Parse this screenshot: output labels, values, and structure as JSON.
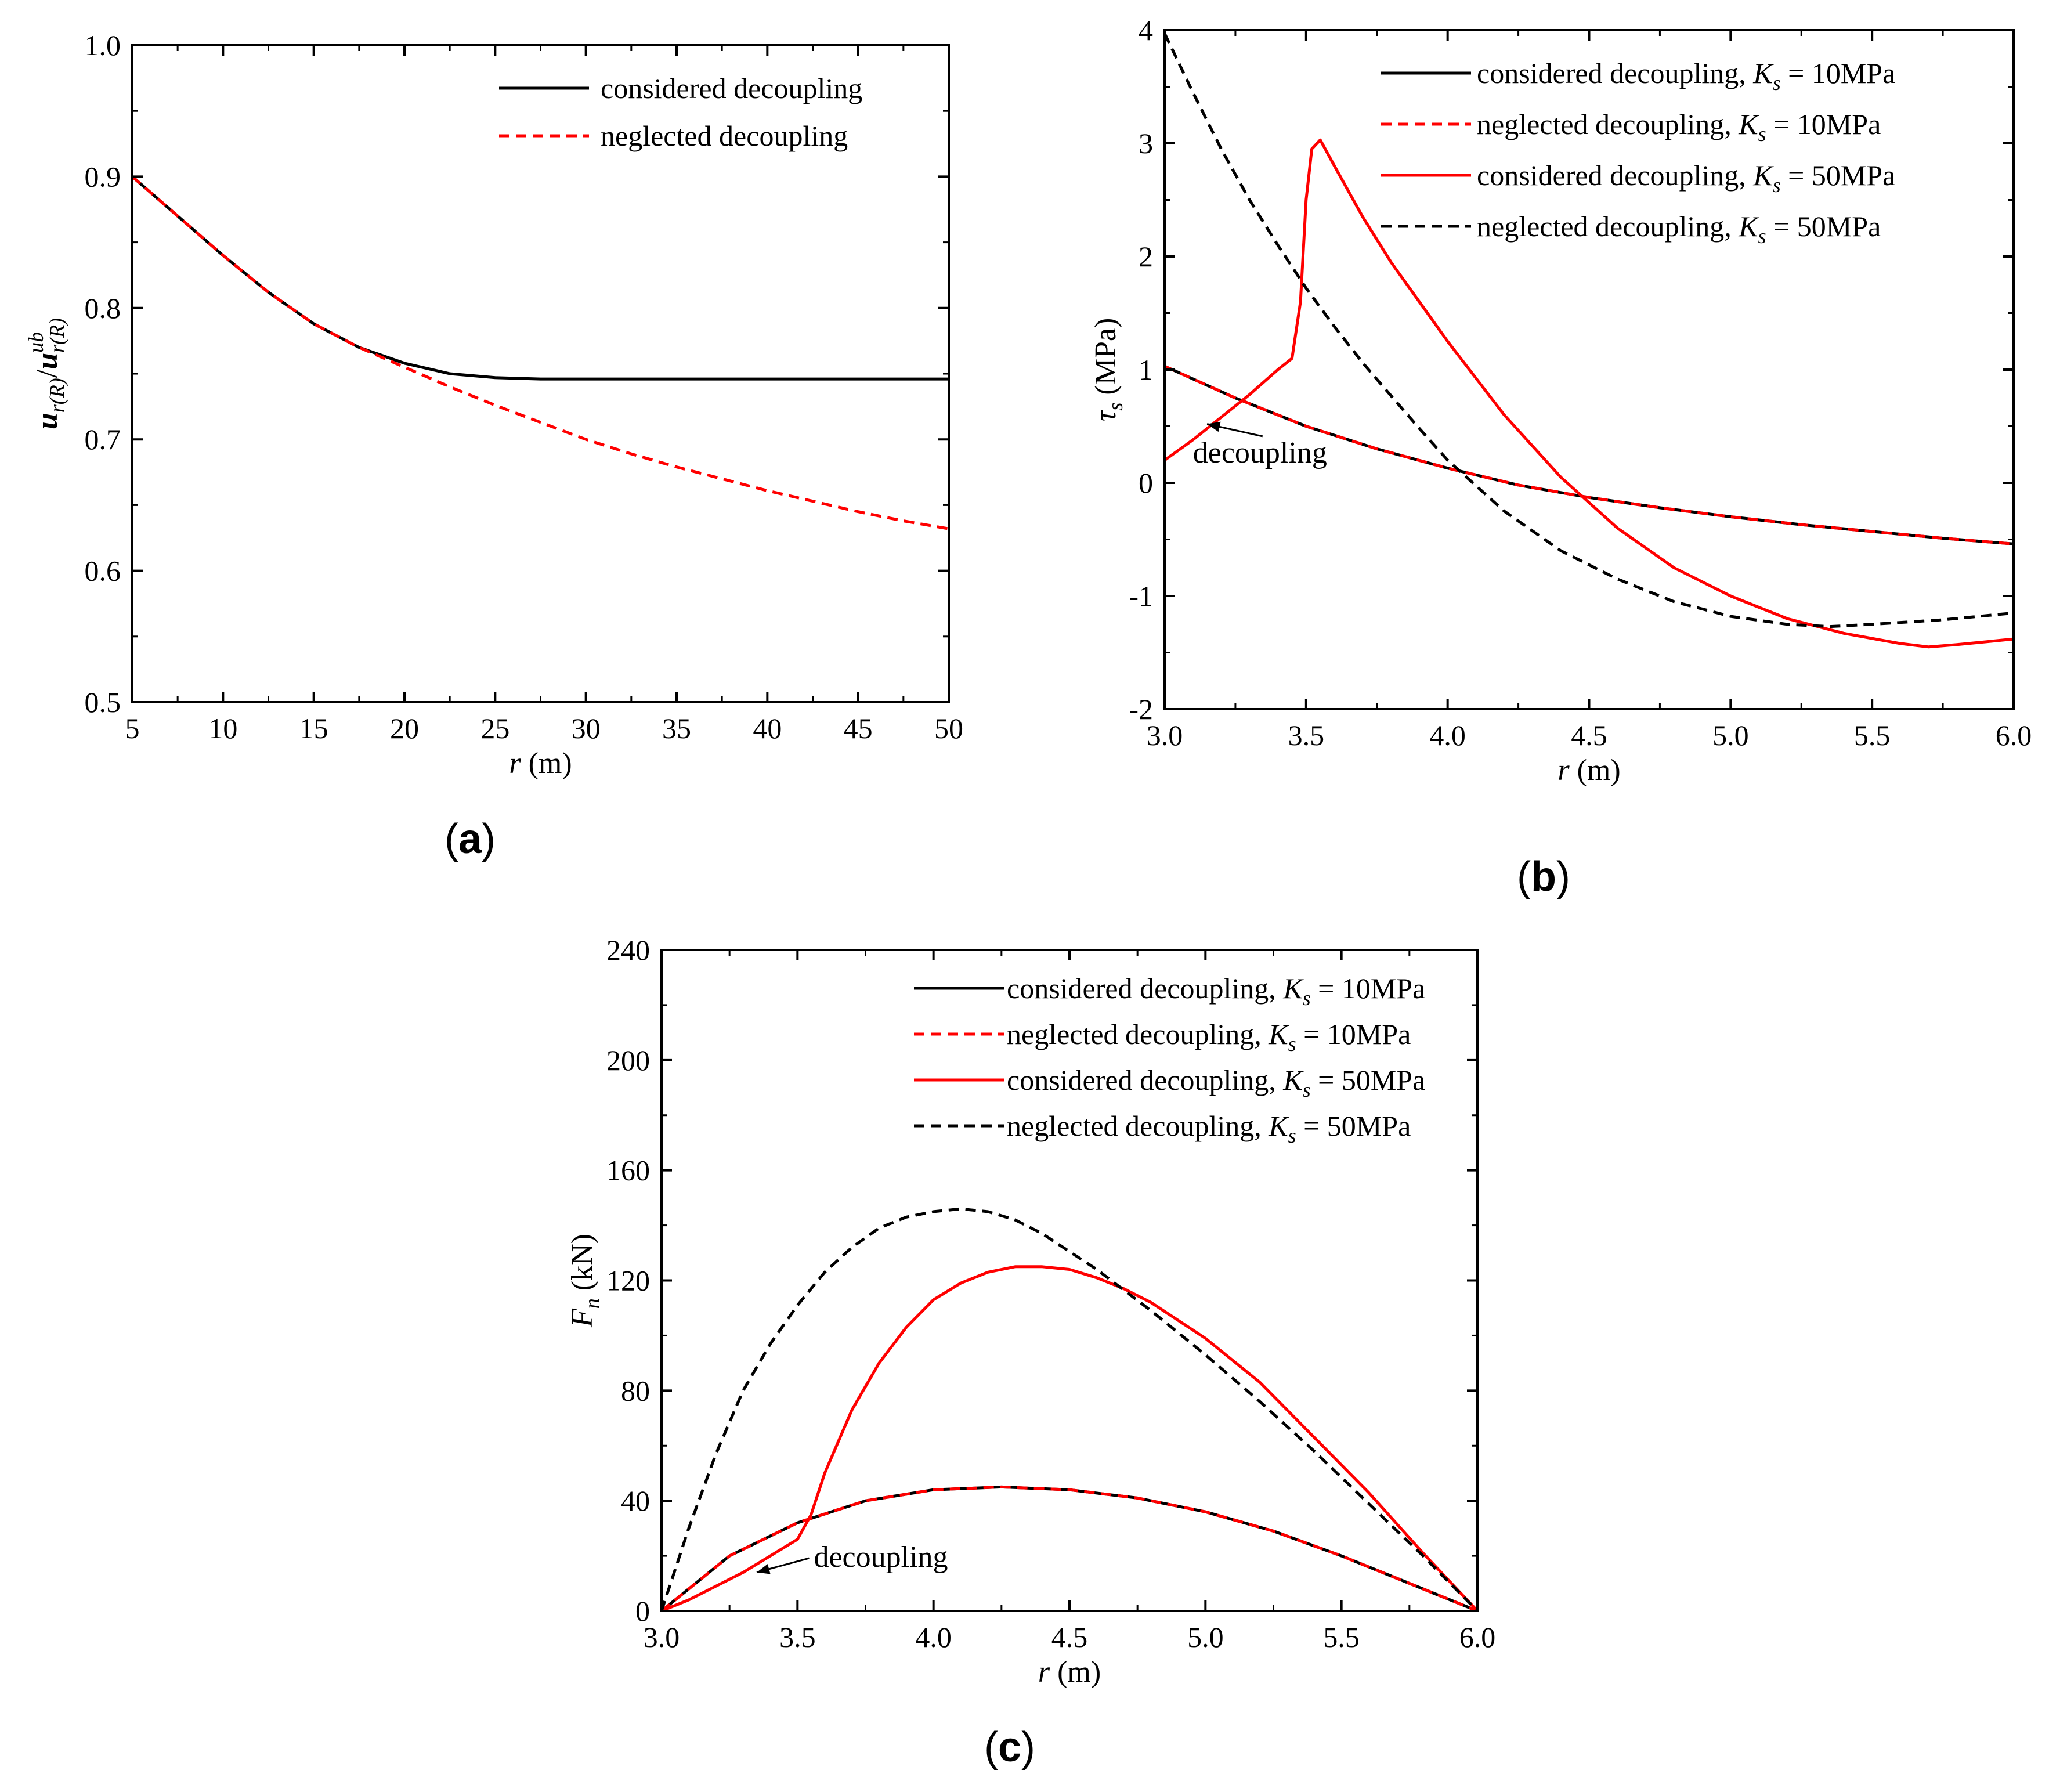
{
  "chart_data": [
    {
      "id": "a",
      "type": "line",
      "panel_label": "a",
      "xlabel_italic": "r",
      "xlabel_unit": " (m)",
      "ylabel": "u_r(R)/u_r(R)^ub",
      "xlim": [
        5,
        50
      ],
      "ylim": [
        0.5,
        1.0
      ],
      "xticks": [
        5,
        10,
        15,
        20,
        25,
        30,
        35,
        40,
        45,
        50
      ],
      "xtick_labels": [
        "5",
        "10",
        "15",
        "20",
        "25",
        "30",
        "35",
        "40",
        "45",
        "50"
      ],
      "yticks": [
        0.5,
        0.6,
        0.7,
        0.8,
        0.9,
        1.0
      ],
      "ytick_labels": [
        "0.5",
        "0.6",
        "0.7",
        "0.8",
        "0.9",
        "1.0"
      ],
      "legend_position": "top-right",
      "series": [
        {
          "name": "considered decoupling",
          "color": "#000000",
          "dash": "solid",
          "x": [
            5,
            7.5,
            10,
            12.5,
            15,
            17.5,
            20,
            22.5,
            25,
            27.5,
            30,
            35,
            40,
            45,
            50
          ],
          "y": [
            0.9,
            0.87,
            0.84,
            0.812,
            0.788,
            0.77,
            0.758,
            0.75,
            0.747,
            0.746,
            0.746,
            0.746,
            0.746,
            0.746,
            0.746
          ]
        },
        {
          "name": "neglected decoupling",
          "color": "#ff0000",
          "dash": "dashed",
          "x": [
            5,
            7.5,
            10,
            12.5,
            15,
            17.5,
            20,
            22.5,
            25,
            27.5,
            30,
            32.5,
            35,
            37.5,
            40,
            42.5,
            45,
            47.5,
            50
          ],
          "y": [
            0.9,
            0.87,
            0.84,
            0.812,
            0.788,
            0.77,
            0.755,
            0.74,
            0.726,
            0.713,
            0.7,
            0.689,
            0.679,
            0.67,
            0.661,
            0.653,
            0.645,
            0.638,
            0.632
          ]
        }
      ]
    },
    {
      "id": "b",
      "type": "line",
      "panel_label": "b",
      "xlabel_italic": "r",
      "xlabel_unit": " (m)",
      "ylabel_italic": "τ",
      "ylabel_sub": "s",
      "ylabel_unit": " (MPa)",
      "xlim": [
        3.0,
        6.0
      ],
      "ylim": [
        -2,
        4
      ],
      "xticks": [
        3.0,
        3.5,
        4.0,
        4.5,
        5.0,
        5.5,
        6.0
      ],
      "xtick_labels": [
        "3.0",
        "3.5",
        "4.0",
        "4.5",
        "5.0",
        "5.5",
        "6.0"
      ],
      "yticks": [
        -2,
        -1,
        0,
        1,
        2,
        3,
        4
      ],
      "ytick_labels": [
        "-2",
        "-1",
        "0",
        "1",
        "2",
        "3",
        "4"
      ],
      "legend_position": "top-right",
      "annotation": {
        "text": "decoupling",
        "x": 3.1,
        "y": 0.18,
        "arrow_to": [
          3.15,
          0.52
        ]
      },
      "series": [
        {
          "name": "considered decoupling, ",
          "ks": "K",
          "ks_sub": "s",
          "ks_val": " = 10MPa",
          "color": "#000000",
          "dash": "solid",
          "x": [
            3.0,
            3.25,
            3.5,
            3.75,
            4.0,
            4.25,
            4.5,
            4.75,
            5.0,
            5.25,
            5.5,
            5.75,
            6.0
          ],
          "y": [
            1.03,
            0.75,
            0.5,
            0.3,
            0.13,
            -0.02,
            -0.13,
            -0.22,
            -0.3,
            -0.37,
            -0.43,
            -0.49,
            -0.54
          ]
        },
        {
          "name": "neglected decoupling, ",
          "ks": "K",
          "ks_sub": "s",
          "ks_val": " = 10MPa",
          "color": "#ff0000",
          "dash": "dashed",
          "x": [
            3.0,
            3.25,
            3.5,
            3.75,
            4.0,
            4.25,
            4.5,
            4.75,
            5.0,
            5.25,
            5.5,
            5.75,
            6.0
          ],
          "y": [
            1.03,
            0.75,
            0.5,
            0.3,
            0.13,
            -0.02,
            -0.13,
            -0.22,
            -0.3,
            -0.37,
            -0.43,
            -0.49,
            -0.54
          ]
        },
        {
          "name": "considered decoupling, ",
          "ks": "K",
          "ks_sub": "s",
          "ks_val": " = 50MPa",
          "color": "#ff0000",
          "dash": "solid",
          "x": [
            3.0,
            3.1,
            3.2,
            3.3,
            3.4,
            3.45,
            3.48,
            3.5,
            3.52,
            3.55,
            3.6,
            3.7,
            3.8,
            3.9,
            4.0,
            4.2,
            4.4,
            4.6,
            4.8,
            5.0,
            5.2,
            5.4,
            5.6,
            5.7,
            5.8,
            6.0
          ],
          "y": [
            0.2,
            0.38,
            0.58,
            0.78,
            1.0,
            1.1,
            1.6,
            2.5,
            2.95,
            3.03,
            2.8,
            2.35,
            1.95,
            1.6,
            1.25,
            0.6,
            0.05,
            -0.4,
            -0.75,
            -1.0,
            -1.2,
            -1.33,
            -1.42,
            -1.45,
            -1.43,
            -1.38
          ]
        },
        {
          "name": "neglected decoupling, ",
          "ks": "K",
          "ks_sub": "s",
          "ks_val": " = 50MPa",
          "color": "#000000",
          "dash": "dashed",
          "x": [
            3.0,
            3.1,
            3.2,
            3.3,
            3.4,
            3.5,
            3.6,
            3.7,
            3.8,
            3.9,
            4.0,
            4.2,
            4.4,
            4.6,
            4.8,
            5.0,
            5.2,
            5.35,
            5.5,
            5.75,
            6.0
          ],
          "y": [
            3.97,
            3.45,
            2.95,
            2.5,
            2.1,
            1.72,
            1.38,
            1.06,
            0.77,
            0.48,
            0.2,
            -0.25,
            -0.6,
            -0.85,
            -1.05,
            -1.18,
            -1.25,
            -1.27,
            -1.25,
            -1.21,
            -1.15
          ]
        }
      ]
    },
    {
      "id": "c",
      "type": "line",
      "panel_label": "c",
      "xlabel_italic": "r",
      "xlabel_unit": " (m)",
      "ylabel_italic": "F",
      "ylabel_sub": "n",
      "ylabel_unit": " (kN)",
      "xlim": [
        3.0,
        6.0
      ],
      "ylim": [
        0,
        240
      ],
      "xticks": [
        3.0,
        3.5,
        4.0,
        4.5,
        5.0,
        5.5,
        6.0
      ],
      "xtick_labels": [
        "3.0",
        "3.5",
        "4.0",
        "4.5",
        "5.0",
        "5.5",
        "6.0"
      ],
      "yticks": [
        0,
        40,
        80,
        120,
        160,
        200,
        240
      ],
      "ytick_labels": [
        "0",
        "40",
        "80",
        "120",
        "160",
        "200",
        "240"
      ],
      "legend_position": "top-right",
      "annotation": {
        "text": "decoupling",
        "x": 3.56,
        "y": 16,
        "arrow_to": [
          3.35,
          14
        ]
      },
      "series": [
        {
          "name": "considered decoupling, ",
          "ks": "K",
          "ks_sub": "s",
          "ks_val": " = 10MPa",
          "color": "#000000",
          "dash": "solid",
          "x": [
            3.0,
            3.25,
            3.5,
            3.75,
            4.0,
            4.25,
            4.5,
            4.75,
            5.0,
            5.25,
            5.5,
            5.75,
            6.0
          ],
          "y": [
            0,
            20,
            32,
            40,
            44,
            45,
            44,
            41,
            36,
            29,
            20,
            10,
            0
          ]
        },
        {
          "name": "neglected decoupling, ",
          "ks": "K",
          "ks_sub": "s",
          "ks_val": " = 10MPa",
          "color": "#ff0000",
          "dash": "dashed",
          "x": [
            3.0,
            3.25,
            3.5,
            3.75,
            4.0,
            4.25,
            4.5,
            4.75,
            5.0,
            5.25,
            5.5,
            5.75,
            6.0
          ],
          "y": [
            0,
            20,
            32,
            40,
            44,
            45,
            44,
            41,
            36,
            29,
            20,
            10,
            0
          ]
        },
        {
          "name": "considered decoupling, ",
          "ks": "K",
          "ks_sub": "s",
          "ks_val": " = 50MPa",
          "color": "#ff0000",
          "dash": "solid",
          "x": [
            3.0,
            3.1,
            3.2,
            3.3,
            3.4,
            3.5,
            3.55,
            3.6,
            3.7,
            3.8,
            3.9,
            4.0,
            4.1,
            4.2,
            4.3,
            4.4,
            4.5,
            4.6,
            4.7,
            4.8,
            5.0,
            5.2,
            5.4,
            5.6,
            5.8,
            6.0
          ],
          "y": [
            0,
            4,
            9,
            14,
            20,
            26,
            35,
            50,
            73,
            90,
            103,
            113,
            119,
            123,
            125,
            125,
            124,
            121,
            117,
            112,
            99,
            83,
            63,
            43,
            21,
            0
          ]
        },
        {
          "name": "neglected decoupling, ",
          "ks": "K",
          "ks_sub": "s",
          "ks_val": " = 50MPa",
          "color": "#000000",
          "dash": "dashed",
          "x": [
            3.0,
            3.1,
            3.2,
            3.3,
            3.4,
            3.5,
            3.6,
            3.7,
            3.8,
            3.9,
            4.0,
            4.1,
            4.2,
            4.3,
            4.4,
            4.6,
            4.8,
            5.0,
            5.2,
            5.4,
            5.6,
            5.8,
            6.0
          ],
          "y": [
            0,
            30,
            57,
            80,
            97,
            111,
            123,
            132,
            139,
            143,
            145,
            146,
            145,
            142,
            137,
            124,
            109,
            93,
            76,
            58,
            39,
            20,
            0
          ]
        }
      ]
    }
  ]
}
